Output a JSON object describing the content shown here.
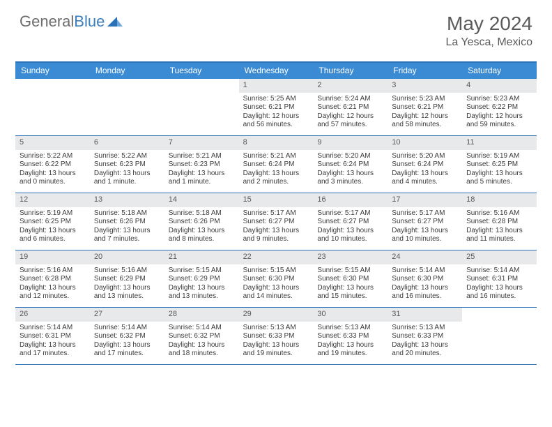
{
  "brand": {
    "part1": "General",
    "part2": "Blue"
  },
  "title": "May 2024",
  "location": "La Yesca, Mexico",
  "accent_color": "#3b8bd4",
  "rule_color": "#2b71b8",
  "daynum_bg": "#e8e9ea",
  "text_color": "#3a3a3a",
  "columns": [
    "Sunday",
    "Monday",
    "Tuesday",
    "Wednesday",
    "Thursday",
    "Friday",
    "Saturday"
  ],
  "weeks": [
    [
      {
        "empty": true
      },
      {
        "empty": true
      },
      {
        "empty": true
      },
      {
        "day": "1",
        "sunrise": "Sunrise: 5:25 AM",
        "sunset": "Sunset: 6:21 PM",
        "daylight1": "Daylight: 12 hours",
        "daylight2": "and 56 minutes."
      },
      {
        "day": "2",
        "sunrise": "Sunrise: 5:24 AM",
        "sunset": "Sunset: 6:21 PM",
        "daylight1": "Daylight: 12 hours",
        "daylight2": "and 57 minutes."
      },
      {
        "day": "3",
        "sunrise": "Sunrise: 5:23 AM",
        "sunset": "Sunset: 6:21 PM",
        "daylight1": "Daylight: 12 hours",
        "daylight2": "and 58 minutes."
      },
      {
        "day": "4",
        "sunrise": "Sunrise: 5:23 AM",
        "sunset": "Sunset: 6:22 PM",
        "daylight1": "Daylight: 12 hours",
        "daylight2": "and 59 minutes."
      }
    ],
    [
      {
        "day": "5",
        "sunrise": "Sunrise: 5:22 AM",
        "sunset": "Sunset: 6:22 PM",
        "daylight1": "Daylight: 13 hours",
        "daylight2": "and 0 minutes."
      },
      {
        "day": "6",
        "sunrise": "Sunrise: 5:22 AM",
        "sunset": "Sunset: 6:23 PM",
        "daylight1": "Daylight: 13 hours",
        "daylight2": "and 1 minute."
      },
      {
        "day": "7",
        "sunrise": "Sunrise: 5:21 AM",
        "sunset": "Sunset: 6:23 PM",
        "daylight1": "Daylight: 13 hours",
        "daylight2": "and 1 minute."
      },
      {
        "day": "8",
        "sunrise": "Sunrise: 5:21 AM",
        "sunset": "Sunset: 6:24 PM",
        "daylight1": "Daylight: 13 hours",
        "daylight2": "and 2 minutes."
      },
      {
        "day": "9",
        "sunrise": "Sunrise: 5:20 AM",
        "sunset": "Sunset: 6:24 PM",
        "daylight1": "Daylight: 13 hours",
        "daylight2": "and 3 minutes."
      },
      {
        "day": "10",
        "sunrise": "Sunrise: 5:20 AM",
        "sunset": "Sunset: 6:24 PM",
        "daylight1": "Daylight: 13 hours",
        "daylight2": "and 4 minutes."
      },
      {
        "day": "11",
        "sunrise": "Sunrise: 5:19 AM",
        "sunset": "Sunset: 6:25 PM",
        "daylight1": "Daylight: 13 hours",
        "daylight2": "and 5 minutes."
      }
    ],
    [
      {
        "day": "12",
        "sunrise": "Sunrise: 5:19 AM",
        "sunset": "Sunset: 6:25 PM",
        "daylight1": "Daylight: 13 hours",
        "daylight2": "and 6 minutes."
      },
      {
        "day": "13",
        "sunrise": "Sunrise: 5:18 AM",
        "sunset": "Sunset: 6:26 PM",
        "daylight1": "Daylight: 13 hours",
        "daylight2": "and 7 minutes."
      },
      {
        "day": "14",
        "sunrise": "Sunrise: 5:18 AM",
        "sunset": "Sunset: 6:26 PM",
        "daylight1": "Daylight: 13 hours",
        "daylight2": "and 8 minutes."
      },
      {
        "day": "15",
        "sunrise": "Sunrise: 5:17 AM",
        "sunset": "Sunset: 6:27 PM",
        "daylight1": "Daylight: 13 hours",
        "daylight2": "and 9 minutes."
      },
      {
        "day": "16",
        "sunrise": "Sunrise: 5:17 AM",
        "sunset": "Sunset: 6:27 PM",
        "daylight1": "Daylight: 13 hours",
        "daylight2": "and 10 minutes."
      },
      {
        "day": "17",
        "sunrise": "Sunrise: 5:17 AM",
        "sunset": "Sunset: 6:27 PM",
        "daylight1": "Daylight: 13 hours",
        "daylight2": "and 10 minutes."
      },
      {
        "day": "18",
        "sunrise": "Sunrise: 5:16 AM",
        "sunset": "Sunset: 6:28 PM",
        "daylight1": "Daylight: 13 hours",
        "daylight2": "and 11 minutes."
      }
    ],
    [
      {
        "day": "19",
        "sunrise": "Sunrise: 5:16 AM",
        "sunset": "Sunset: 6:28 PM",
        "daylight1": "Daylight: 13 hours",
        "daylight2": "and 12 minutes."
      },
      {
        "day": "20",
        "sunrise": "Sunrise: 5:16 AM",
        "sunset": "Sunset: 6:29 PM",
        "daylight1": "Daylight: 13 hours",
        "daylight2": "and 13 minutes."
      },
      {
        "day": "21",
        "sunrise": "Sunrise: 5:15 AM",
        "sunset": "Sunset: 6:29 PM",
        "daylight1": "Daylight: 13 hours",
        "daylight2": "and 13 minutes."
      },
      {
        "day": "22",
        "sunrise": "Sunrise: 5:15 AM",
        "sunset": "Sunset: 6:30 PM",
        "daylight1": "Daylight: 13 hours",
        "daylight2": "and 14 minutes."
      },
      {
        "day": "23",
        "sunrise": "Sunrise: 5:15 AM",
        "sunset": "Sunset: 6:30 PM",
        "daylight1": "Daylight: 13 hours",
        "daylight2": "and 15 minutes."
      },
      {
        "day": "24",
        "sunrise": "Sunrise: 5:14 AM",
        "sunset": "Sunset: 6:30 PM",
        "daylight1": "Daylight: 13 hours",
        "daylight2": "and 16 minutes."
      },
      {
        "day": "25",
        "sunrise": "Sunrise: 5:14 AM",
        "sunset": "Sunset: 6:31 PM",
        "daylight1": "Daylight: 13 hours",
        "daylight2": "and 16 minutes."
      }
    ],
    [
      {
        "day": "26",
        "sunrise": "Sunrise: 5:14 AM",
        "sunset": "Sunset: 6:31 PM",
        "daylight1": "Daylight: 13 hours",
        "daylight2": "and 17 minutes."
      },
      {
        "day": "27",
        "sunrise": "Sunrise: 5:14 AM",
        "sunset": "Sunset: 6:32 PM",
        "daylight1": "Daylight: 13 hours",
        "daylight2": "and 17 minutes."
      },
      {
        "day": "28",
        "sunrise": "Sunrise: 5:14 AM",
        "sunset": "Sunset: 6:32 PM",
        "daylight1": "Daylight: 13 hours",
        "daylight2": "and 18 minutes."
      },
      {
        "day": "29",
        "sunrise": "Sunrise: 5:13 AM",
        "sunset": "Sunset: 6:33 PM",
        "daylight1": "Daylight: 13 hours",
        "daylight2": "and 19 minutes."
      },
      {
        "day": "30",
        "sunrise": "Sunrise: 5:13 AM",
        "sunset": "Sunset: 6:33 PM",
        "daylight1": "Daylight: 13 hours",
        "daylight2": "and 19 minutes."
      },
      {
        "day": "31",
        "sunrise": "Sunrise: 5:13 AM",
        "sunset": "Sunset: 6:33 PM",
        "daylight1": "Daylight: 13 hours",
        "daylight2": "and 20 minutes."
      },
      {
        "empty": true
      }
    ]
  ]
}
